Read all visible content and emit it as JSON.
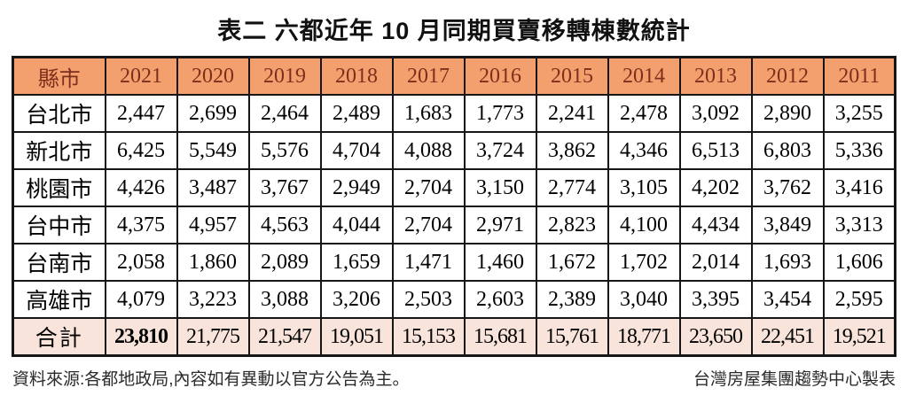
{
  "title": "表二 六都近年 10 月同期買賣移轉棟數統計",
  "table": {
    "corner_header": "縣市",
    "years": [
      "2021",
      "2020",
      "2019",
      "2018",
      "2017",
      "2016",
      "2015",
      "2014",
      "2013",
      "2012",
      "2011"
    ],
    "rows": [
      {
        "city": "台北市",
        "values": [
          "2,447",
          "2,699",
          "2,464",
          "2,489",
          "1,683",
          "1,773",
          "2,241",
          "2,478",
          "3,092",
          "2,890",
          "3,255"
        ]
      },
      {
        "city": "新北市",
        "values": [
          "6,425",
          "5,549",
          "5,576",
          "4,704",
          "4,088",
          "3,724",
          "3,862",
          "4,346",
          "6,513",
          "6,803",
          "5,336"
        ]
      },
      {
        "city": "桃園市",
        "values": [
          "4,426",
          "3,487",
          "3,767",
          "2,949",
          "2,704",
          "3,150",
          "2,774",
          "3,105",
          "4,202",
          "3,762",
          "3,416"
        ]
      },
      {
        "city": "台中市",
        "values": [
          "4,375",
          "4,957",
          "4,563",
          "4,044",
          "2,704",
          "2,971",
          "2,823",
          "4,100",
          "4,434",
          "3,849",
          "3,313"
        ]
      },
      {
        "city": "台南市",
        "values": [
          "2,058",
          "1,860",
          "2,089",
          "1,659",
          "1,471",
          "1,460",
          "1,672",
          "1,702",
          "2,014",
          "1,693",
          "1,606"
        ]
      },
      {
        "city": "高雄市",
        "values": [
          "4,079",
          "3,223",
          "3,088",
          "3,206",
          "2,503",
          "2,603",
          "2,389",
          "3,040",
          "3,395",
          "3,454",
          "2,595"
        ]
      }
    ],
    "total": {
      "label": "合計",
      "values": [
        "23,810",
        "21,775",
        "21,547",
        "19,051",
        "15,153",
        "15,681",
        "15,761",
        "18,771",
        "23,650",
        "22,451",
        "19,521"
      ]
    }
  },
  "footer": {
    "source": "資料來源:各都地政局,內容如有異動以官方公告為主。",
    "credit": "台灣房屋集團趨勢中心製表"
  },
  "colors": {
    "header_bg": "#F4A06E",
    "header_text": "#7D2F1D",
    "total_bg": "#F9E4DB",
    "border": "#161616"
  },
  "chart_data": {
    "type": "table",
    "title": "表二 六都近年 10 月同期買賣移轉棟數統計",
    "columns": [
      "縣市",
      "2021",
      "2020",
      "2019",
      "2018",
      "2017",
      "2016",
      "2015",
      "2014",
      "2013",
      "2012",
      "2011"
    ],
    "rows": [
      [
        "台北市",
        2447,
        2699,
        2464,
        2489,
        1683,
        1773,
        2241,
        2478,
        3092,
        2890,
        3255
      ],
      [
        "新北市",
        6425,
        5549,
        5576,
        4704,
        4088,
        3724,
        3862,
        4346,
        6513,
        6803,
        5336
      ],
      [
        "桃園市",
        4426,
        3487,
        3767,
        2949,
        2704,
        3150,
        2774,
        3105,
        4202,
        3762,
        3416
      ],
      [
        "台中市",
        4375,
        4957,
        4563,
        4044,
        2704,
        2971,
        2823,
        4100,
        4434,
        3849,
        3313
      ],
      [
        "台南市",
        2058,
        1860,
        2089,
        1659,
        1471,
        1460,
        1672,
        1702,
        2014,
        1693,
        1606
      ],
      [
        "高雄市",
        4079,
        3223,
        3088,
        3206,
        2503,
        2603,
        2389,
        3040,
        3395,
        3454,
        2595
      ],
      [
        "合計",
        23810,
        21775,
        21547,
        19051,
        15153,
        15681,
        15761,
        18771,
        23650,
        22451,
        19521
      ]
    ],
    "source_note": "資料來源:各都地政局,內容如有異動以官方公告為主。",
    "credit_note": "台灣房屋集團趨勢中心製表"
  }
}
